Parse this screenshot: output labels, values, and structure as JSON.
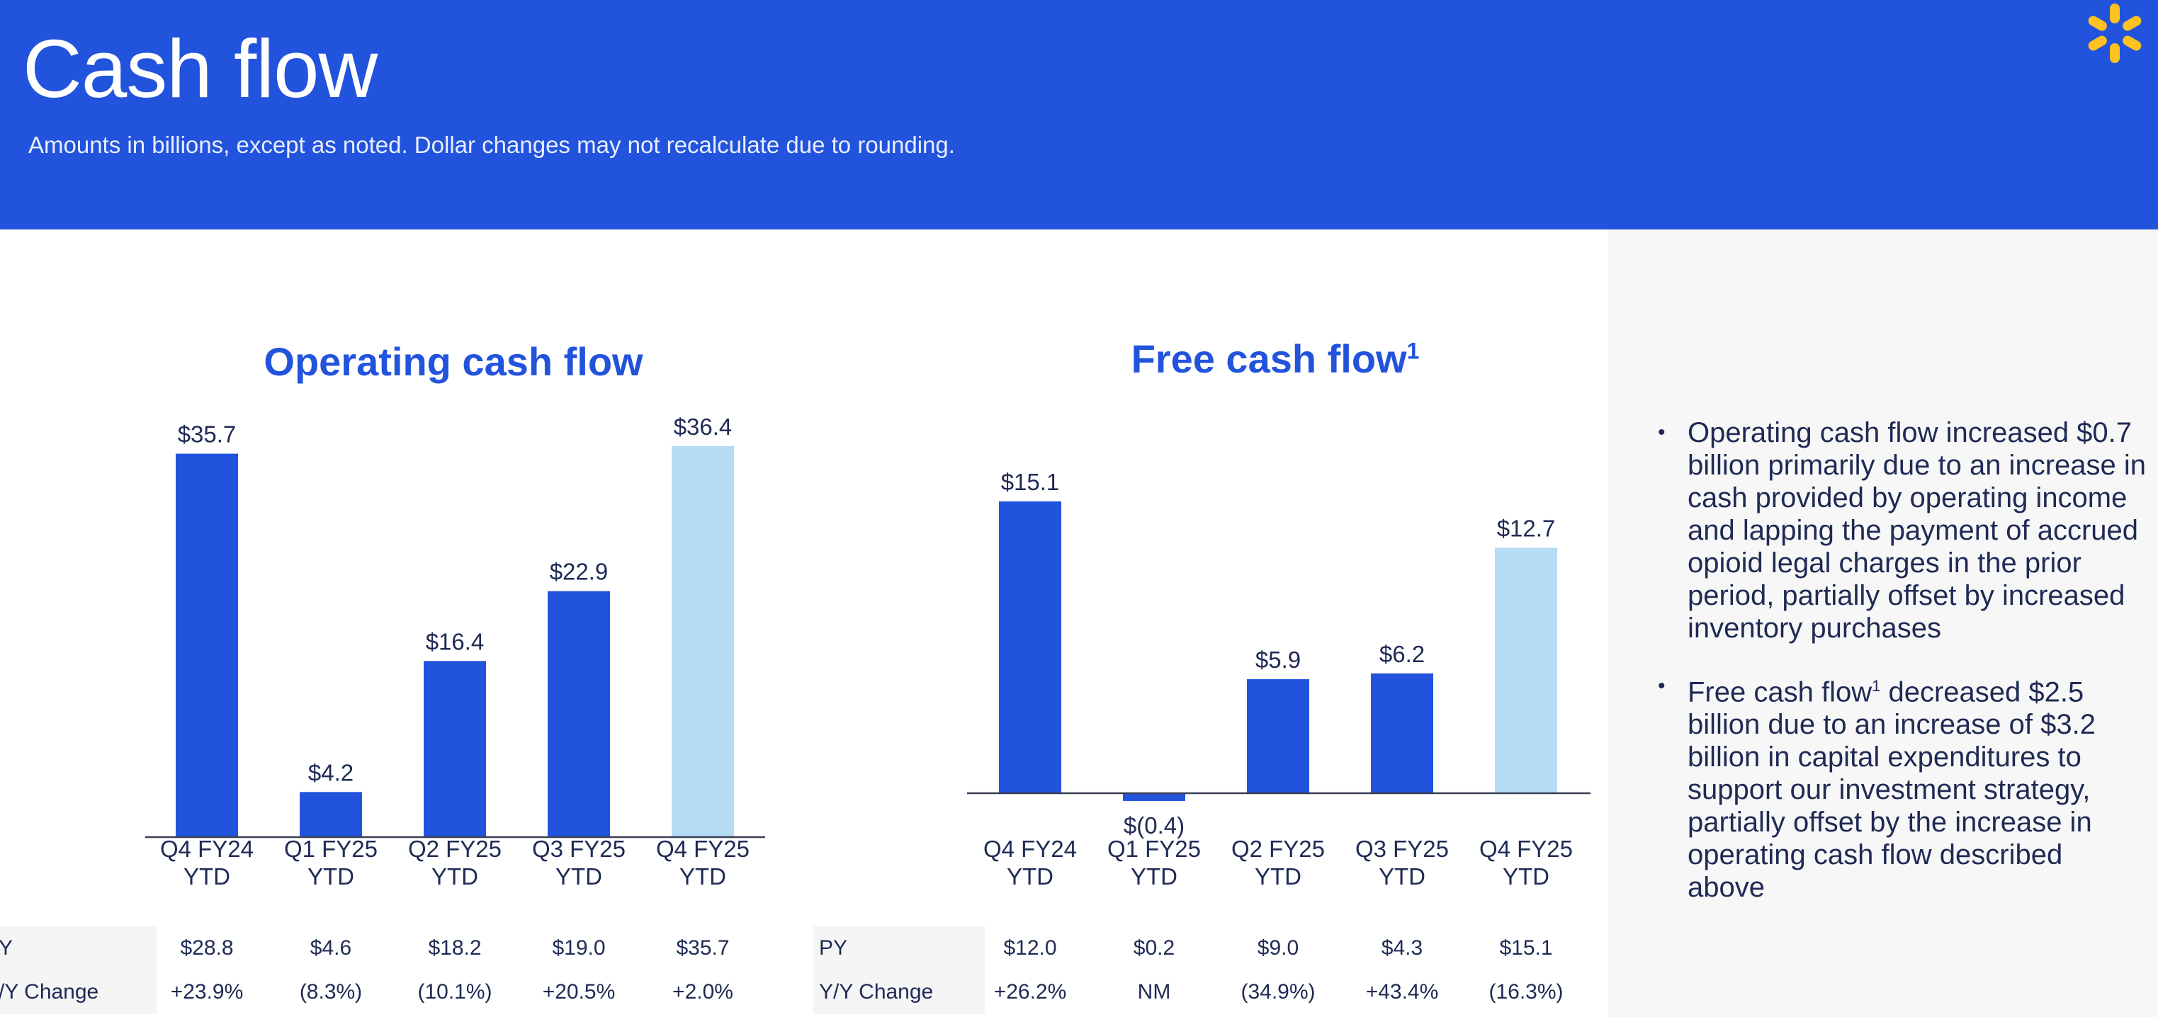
{
  "header": {
    "title": "Cash flow",
    "subtitle": "Amounts in billions, except as noted.  Dollar changes may not recalculate due to rounding.",
    "logo_icon": "spark-icon",
    "logo_color": "#ffc220",
    "background": "#2253dc"
  },
  "chart_data": [
    {
      "type": "bar",
      "title": "Operating cash flow",
      "categories": [
        "Q4 FY24\nYTD",
        "Q1 FY25\nYTD",
        "Q2 FY25\nYTD",
        "Q3 FY25\nYTD",
        "Q4 FY25\nYTD"
      ],
      "values": [
        35.7,
        4.2,
        16.4,
        22.9,
        36.4
      ],
      "labels": [
        "$35.7",
        "$4.2",
        "$16.4",
        "$22.9",
        "$36.4"
      ],
      "colors": [
        "#2253dc",
        "#2253dc",
        "#2253dc",
        "#2253dc",
        "#b5dcf5"
      ],
      "ylim": [
        0,
        36.4
      ],
      "grid": false,
      "table": {
        "rows": [
          {
            "label": "PY",
            "values": [
              "$28.8",
              "$4.6",
              "$18.2",
              "$19.0",
              "$35.7"
            ]
          },
          {
            "label": "Y/Y Change",
            "values": [
              "+23.9%",
              "(8.3%)",
              "(10.1%)",
              "+20.5%",
              "+2.0%"
            ]
          }
        ]
      }
    },
    {
      "type": "bar",
      "title": "Free cash flow",
      "title_footnote": "1",
      "categories": [
        "Q4 FY24\nYTD",
        "Q1 FY25\nYTD",
        "Q2 FY25\nYTD",
        "Q3 FY25\nYTD",
        "Q4 FY25\nYTD"
      ],
      "values": [
        15.1,
        -0.4,
        5.9,
        6.2,
        12.7
      ],
      "labels": [
        "$15.1",
        "$(0.4)",
        "$5.9",
        "$6.2",
        "$12.7"
      ],
      "colors": [
        "#2253dc",
        "#2253dc",
        "#2253dc",
        "#2253dc",
        "#b5dcf5"
      ],
      "ylim": [
        -0.4,
        15.1
      ],
      "grid": false,
      "table": {
        "rows": [
          {
            "label": "PY",
            "values": [
              "$12.0",
              "$0.2",
              "$9.0",
              "$4.3",
              "$15.1"
            ]
          },
          {
            "label": "Y/Y Change",
            "values": [
              "+26.2%",
              "NM",
              "(34.9%)",
              "+43.4%",
              "(16.3%)"
            ]
          }
        ]
      }
    }
  ],
  "commentary": {
    "bullet_1": "Operating cash flow increased $0.7 billion primarily due to an increase in cash provided by operating income and lapping the payment of accrued opioid legal charges in the prior period, partially offset by increased inventory purchases",
    "bullet_2_lead": "Free cash flow",
    "bullet_2_footnote": "1",
    "bullet_2_rest": " decreased $2.5 billion due to an increase of $3.2 billion in capital expenditures to support our investment strategy, partially offset by the increase in operating cash flow described above"
  }
}
